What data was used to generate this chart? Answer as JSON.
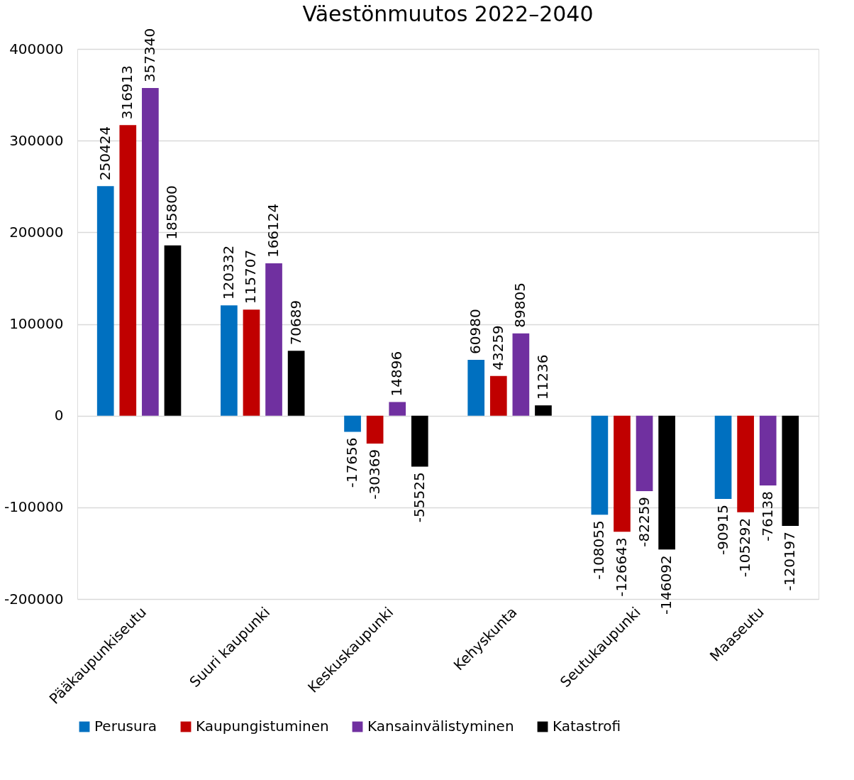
{
  "chart_data": {
    "type": "bar",
    "title": "Väestönmuutos 2022–2040",
    "categories": [
      "Pääkaupunkiseutu",
      "Suuri kaupunki",
      "Keskuskaupunki",
      "Kehyskunta",
      "Seutukaupunki",
      "Maaseutu"
    ],
    "series": [
      {
        "name": "Perusura",
        "color": "#0070c0",
        "values": [
          250424,
          120332,
          -17656,
          60980,
          -108055,
          -90915
        ]
      },
      {
        "name": "Kaupungistuminen",
        "color": "#c00000",
        "values": [
          316913,
          115707,
          -30369,
          43259,
          -126643,
          -105292
        ]
      },
      {
        "name": "Kansainvälistyminen",
        "color": "#7030a0",
        "values": [
          357340,
          166124,
          14896,
          89805,
          -82259,
          -76138
        ]
      },
      {
        "name": "Katastrofi",
        "color": "#000000",
        "values": [
          185800,
          70689,
          -55525,
          11236,
          -146092,
          -120197
        ]
      }
    ],
    "ylim": [
      -200000,
      400000
    ],
    "yticks": [
      -200000,
      -100000,
      0,
      100000,
      200000,
      300000,
      400000
    ],
    "grid": "y",
    "legend": "bottom",
    "data_labels": true
  }
}
